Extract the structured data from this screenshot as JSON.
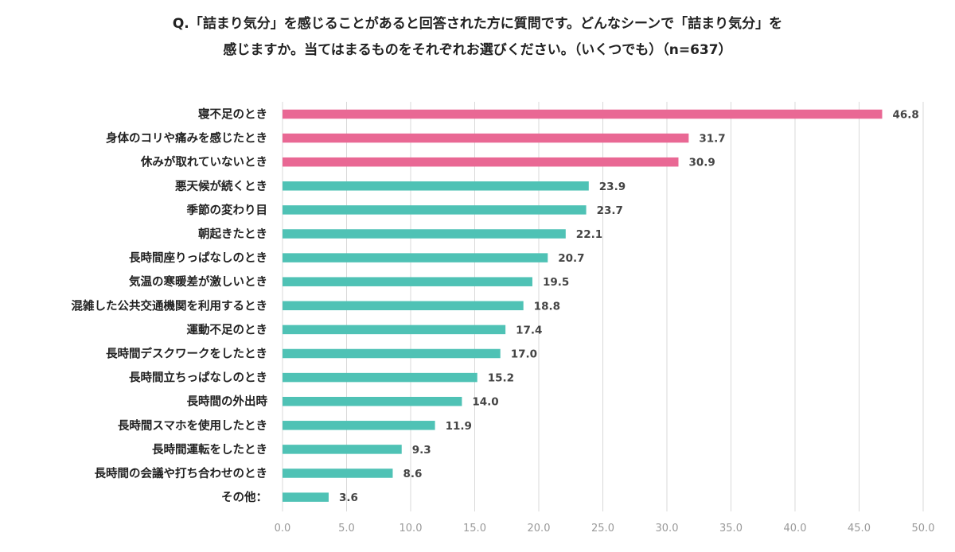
{
  "chart_data": {
    "type": "bar",
    "orientation": "horizontal",
    "title_line1": "Q.「詰まり気分」を感じることがあると回答された方に質問です。どんなシーンで「詰まり気分」を",
    "title_line2": "感じますか。当てはまるものをそれぞれお選びください。（いくつでも）（n=637）",
    "categories": [
      "寝不足のとき",
      "身体のコリや痛みを感じたとき",
      "休みが取れていないとき",
      "悪天候が続くとき",
      "季節の変わり目",
      "朝起きたとき",
      "長時間座りっぱなしのとき",
      "気温の寒暖差が激しいとき",
      "混雑した公共交通機関を利用するとき",
      "運動不足のとき",
      "長時間デスクワークをしたとき",
      "長時間立ちっぱなしのとき",
      "長時間の外出時",
      "長時間スマホを使用したとき",
      "長時間運転をしたとき",
      "長時間の会議や打ち合わせのとき",
      "その他："
    ],
    "values": [
      46.8,
      31.7,
      30.9,
      23.9,
      23.7,
      22.1,
      20.7,
      19.5,
      18.8,
      17.4,
      17.0,
      15.2,
      14.0,
      11.9,
      9.3,
      8.6,
      3.6
    ],
    "value_labels": [
      "46.8",
      "31.7",
      "30.9",
      "23.9",
      "23.7",
      "22.1",
      "20.7",
      "19.5",
      "18.8",
      "17.4",
      "17.0",
      "15.2",
      "14.0",
      "11.9",
      "9.3",
      "8.6",
      "3.6"
    ],
    "highlight_top_n": 3,
    "xlim": [
      0,
      50
    ],
    "xticks": [
      "0.0",
      "5.0",
      "10.0",
      "15.0",
      "20.0",
      "25.0",
      "30.0",
      "35.0",
      "40.0",
      "45.0",
      "50.0"
    ],
    "colors": {
      "highlight": "#e96894",
      "normal": "#4fc2b5",
      "grid": "#d9d9d9"
    }
  }
}
